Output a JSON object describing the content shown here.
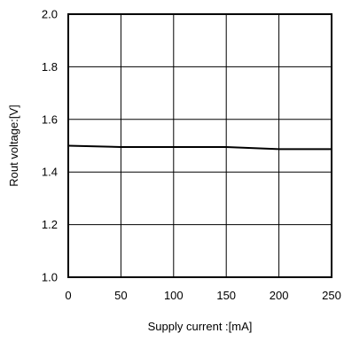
{
  "chart_data": {
    "type": "line",
    "title": "",
    "xlabel": "Supply current :[mA]",
    "ylabel": "Rout voltage:[V]",
    "xlim": [
      0,
      250
    ],
    "ylim": [
      1.0,
      2.0
    ],
    "xticks": [
      0,
      50,
      100,
      150,
      200,
      250
    ],
    "yticks": [
      1.0,
      1.2,
      1.4,
      1.6,
      1.8,
      2.0
    ],
    "xtick_labels": [
      "0",
      "50",
      "100",
      "150",
      "200",
      "250"
    ],
    "ytick_labels": [
      "1.0",
      "1.2",
      "1.4",
      "1.6",
      "1.8",
      "2.0"
    ],
    "grid": true,
    "series": [
      {
        "x": [
          0,
          50,
          100,
          150,
          200,
          250
        ],
        "values": [
          1.5,
          1.495,
          1.495,
          1.495,
          1.487,
          1.487
        ],
        "color": "#000000"
      }
    ]
  }
}
